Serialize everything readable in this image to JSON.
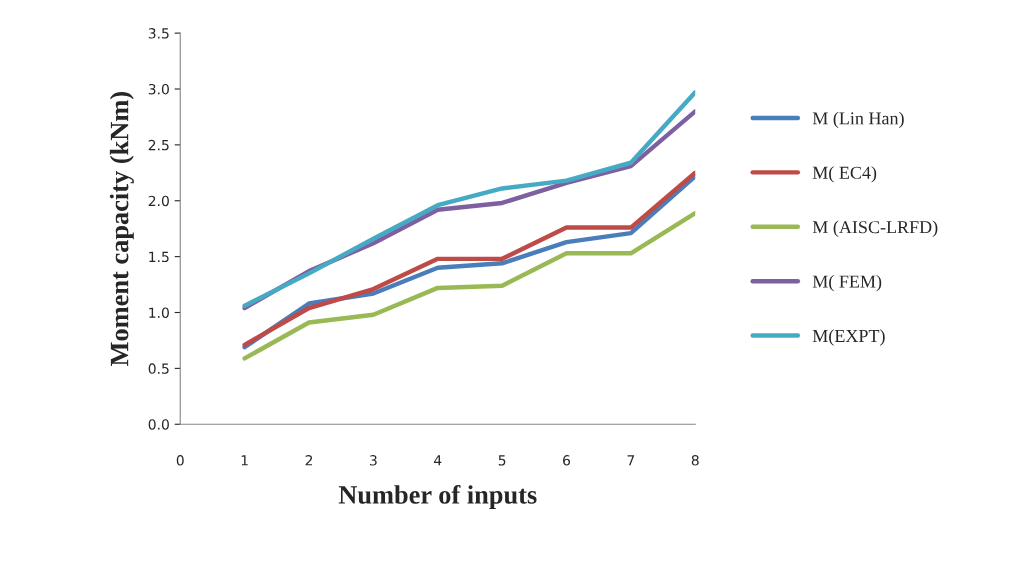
{
  "chart_data": {
    "type": "line",
    "xlabel": "Number of inputs",
    "ylabel": "Moment capacity (kNm)",
    "x": [
      1,
      2,
      3,
      4,
      5,
      6,
      7,
      8
    ],
    "xlim": [
      0,
      8
    ],
    "xticks": [
      0,
      1,
      2,
      3,
      4,
      5,
      6,
      7,
      8
    ],
    "ylim": [
      0,
      3.5
    ],
    "yticks": [
      {
        "value": 0,
        "label": "0.0"
      },
      0.5,
      {
        "value": 1,
        "label": "1.0"
      },
      1.5,
      {
        "value": 2,
        "label": "2.0"
      },
      2.5,
      {
        "value": 3,
        "label": "3.0"
      },
      3.5
    ],
    "grid": false,
    "legend": "right",
    "marker": "none",
    "line_style": "solid",
    "series": [
      {
        "name": "M (Lin Han)",
        "color": "#4a7ebb",
        "values": [
          0.69,
          1.08,
          1.17,
          1.4,
          1.44,
          1.63,
          1.71,
          2.22
        ]
      },
      {
        "name": "M( EC4)",
        "color": "#be4b48",
        "values": [
          0.71,
          1.04,
          1.21,
          1.48,
          1.48,
          1.76,
          1.76,
          2.25
        ]
      },
      {
        "name": "M (AISC-LRFD)",
        "color": "#98b954",
        "values": [
          0.59,
          0.91,
          0.98,
          1.22,
          1.24,
          1.53,
          1.53,
          1.89
        ]
      },
      {
        "name": "M( FEM)",
        "color": "#7d60a0",
        "values": [
          1.04,
          1.37,
          1.62,
          1.92,
          1.98,
          2.16,
          2.31,
          2.8
        ]
      },
      {
        "name": "M(EXPT)",
        "color": "#46aac5",
        "values": [
          1.06,
          1.35,
          1.66,
          1.96,
          2.11,
          2.18,
          2.34,
          2.97
        ]
      }
    ]
  }
}
